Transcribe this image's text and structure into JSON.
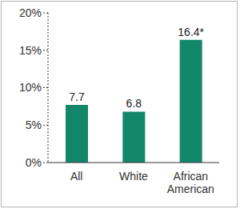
{
  "chart_data": {
    "type": "bar",
    "categories": [
      "All",
      "White",
      "African American"
    ],
    "values": [
      7.7,
      6.8,
      16.4
    ],
    "value_labels": [
      "7.7",
      "6.8",
      "16.4*"
    ],
    "data_labels": true,
    "color": "#12876a",
    "ylim": [
      0,
      20
    ],
    "yticks": [
      {
        "value": 0,
        "label": "0%"
      },
      {
        "value": 5,
        "label": "5%"
      },
      {
        "value": 10,
        "label": "10%"
      },
      {
        "value": 15,
        "label": "15%"
      },
      {
        "value": 20,
        "label": "20%"
      }
    ],
    "grid": false
  }
}
